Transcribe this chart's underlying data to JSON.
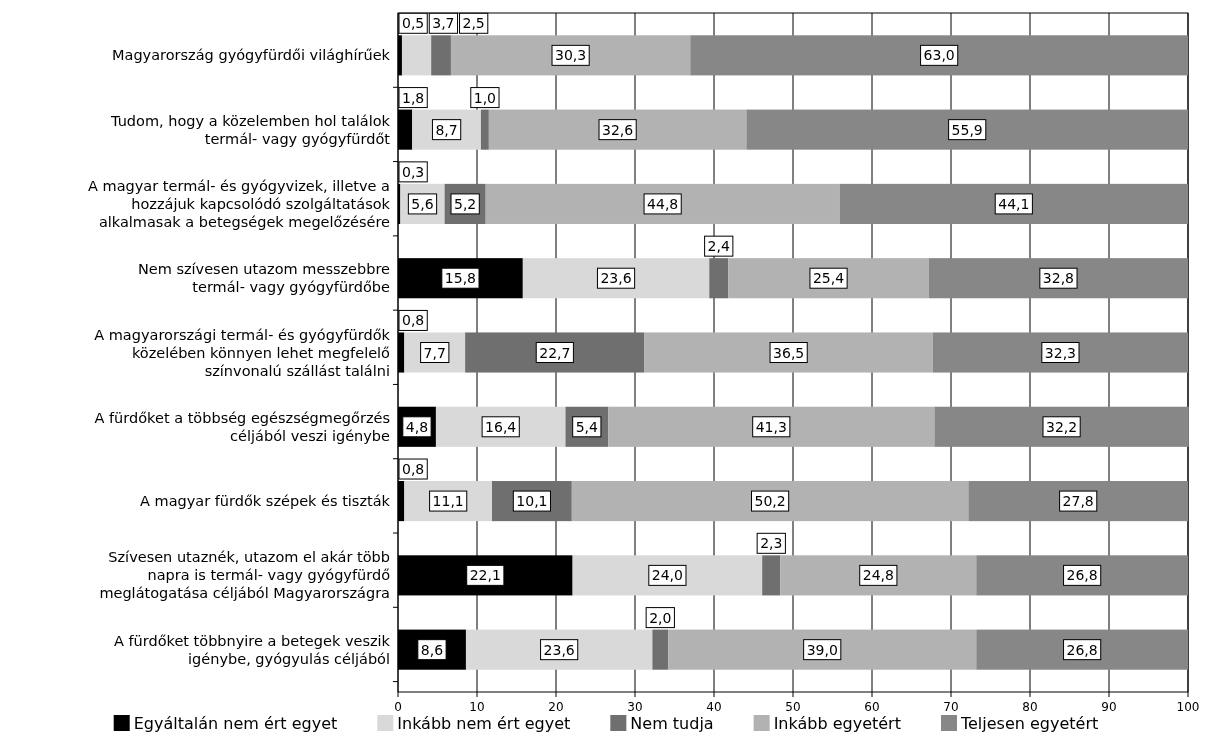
{
  "chart_data": {
    "type": "bar",
    "orientation": "horizontal",
    "stacked": true,
    "grid": "x",
    "legend": "bottom",
    "categories": [
      "Magyarország gyógyfürdői világhírűek",
      "Tudom, hogy a közelemben hol találok termál- vagy gyógyfürdőt",
      "A magyar termál- és gyógyvizek, illetve a hozzájuk kapcsolódó szolgáltatások alkalmasak a betegségek megelőzésére",
      "Nem szívesen utazom messzebbre termál- vagy gyógyfürdőbe",
      "A magyarországi termál- és gyógyfürdők közelében könnyen lehet megfelelő színvonalú szállást találni",
      "A fürdőket a többség egészségmegőrzés céljából veszi igénybe",
      "A magyar fürdők szépek és tiszták",
      "Szívesen utaznék, utazom el akár több napra is termál- vagy gyógyfürdő meglátogatása céljából Magyarországra",
      "A fürdőket többnyire a betegek veszik igénybe, gyógyulás céljából"
    ],
    "xlim": [
      0,
      100
    ],
    "xticks": [
      0,
      10,
      20,
      30,
      40,
      50,
      60,
      70,
      80,
      90,
      100
    ],
    "series": [
      {
        "name": "Egyáltalán nem ért egyet",
        "color": "#000000",
        "values": [
          0.5,
          1.8,
          0.3,
          15.8,
          0.8,
          4.8,
          0.8,
          22.1,
          8.6
        ],
        "value_labels": [
          "0,5",
          "1,8",
          "0,3",
          "15,8",
          "0,8",
          "4,8",
          "0,8",
          "22,1",
          "8,6"
        ]
      },
      {
        "name": "Inkább nem ért egyet",
        "color": "#d9d9d9",
        "values": [
          3.7,
          8.7,
          5.6,
          23.6,
          7.7,
          16.4,
          11.1,
          24.0,
          23.6
        ],
        "value_labels": [
          "3,7",
          "8,7",
          "5,6",
          "23,6",
          "7,7",
          "16,4",
          "11,1",
          "24,0",
          "23,6"
        ]
      },
      {
        "name": "Nem tudja",
        "color": "#6f6f6f",
        "values": [
          2.5,
          1.0,
          5.2,
          2.4,
          22.7,
          5.4,
          10.1,
          2.3,
          2.0
        ],
        "value_labels": [
          "2,5",
          "1,0",
          "5,2",
          "2,4",
          "22,7",
          "5,4",
          "10,1",
          "2,3",
          "2,0"
        ]
      },
      {
        "name": "Inkább egyetért",
        "color": "#b2b2b2",
        "values": [
          30.3,
          32.6,
          44.8,
          25.4,
          36.5,
          41.3,
          50.2,
          24.8,
          39.0
        ],
        "value_labels": [
          "30,3",
          "32,6",
          "44,8",
          "25,4",
          "36,5",
          "41,3",
          "50,2",
          "24,8",
          "39,0"
        ]
      },
      {
        "name": "Teljesen egyetért",
        "color": "#878787",
        "values": [
          63.0,
          55.9,
          44.1,
          32.8,
          32.3,
          32.2,
          27.8,
          26.8,
          26.8
        ],
        "value_labels": [
          "63,0",
          "55,9",
          "44,1",
          "32,8",
          "32,3",
          "32,2",
          "27,8",
          "26,8",
          "26,8"
        ]
      }
    ]
  }
}
